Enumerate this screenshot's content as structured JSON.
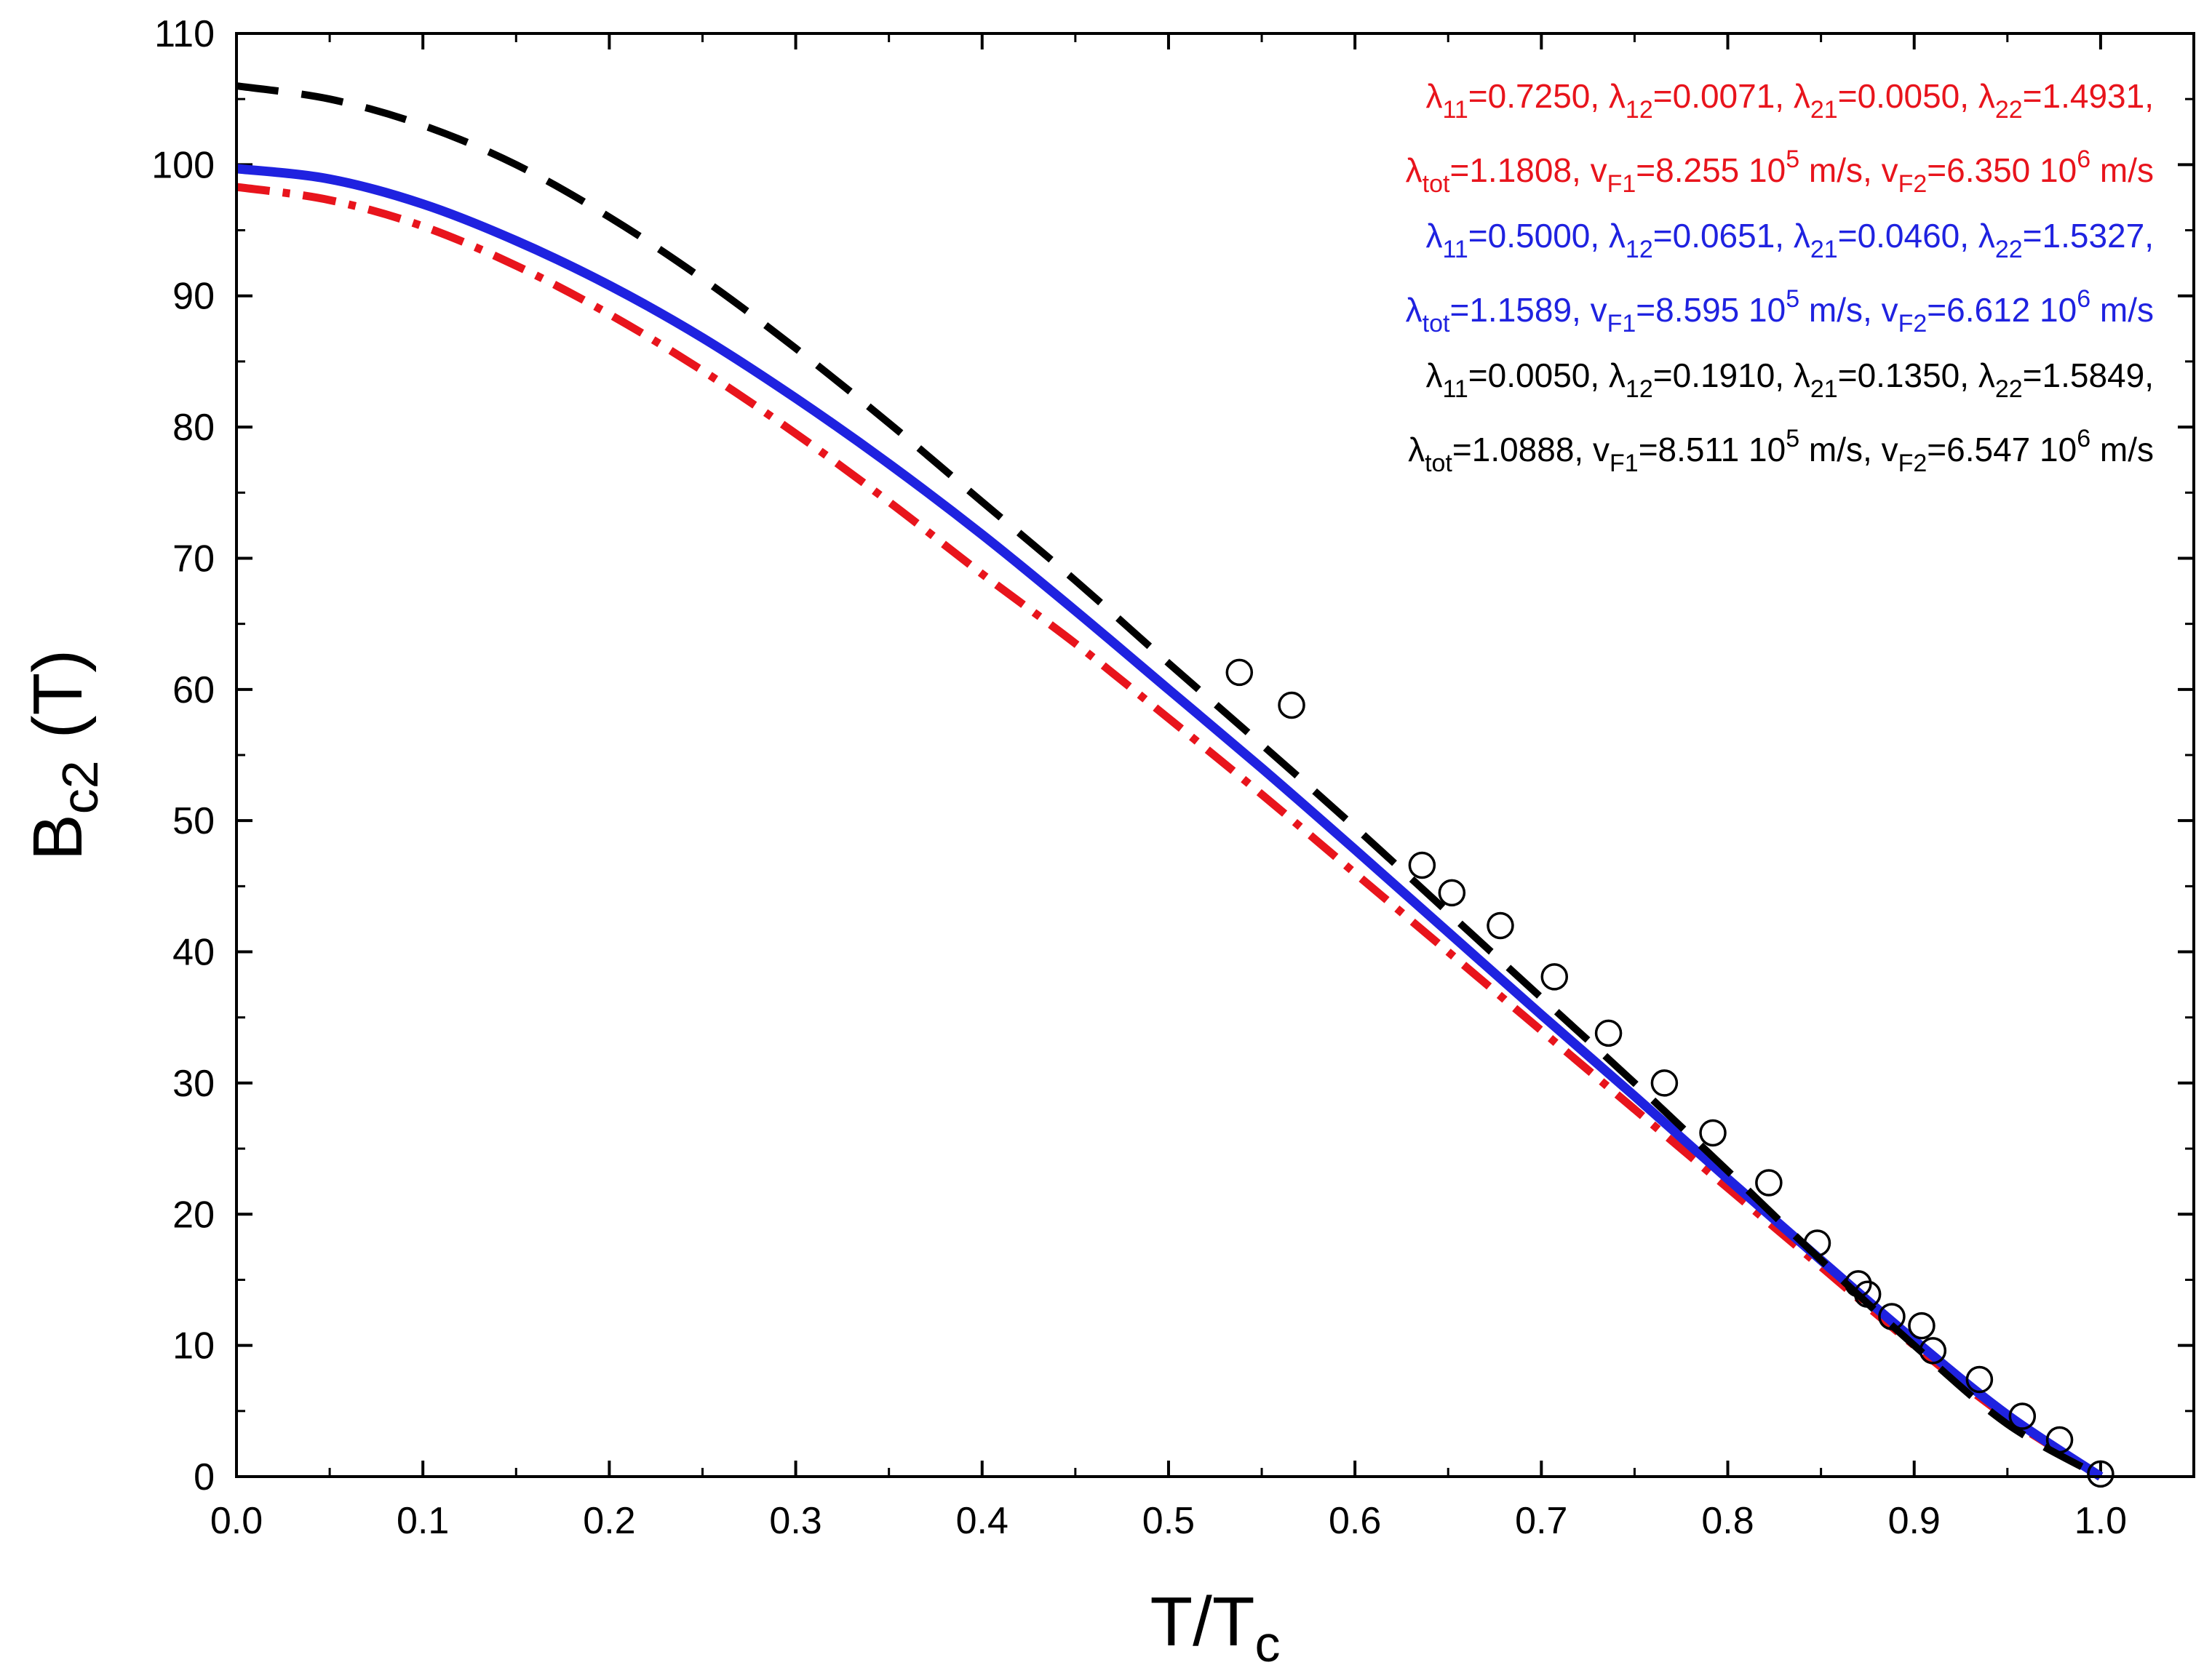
{
  "chart_data": {
    "type": "line",
    "xlabel": {
      "main": "T/T",
      "sub": "c"
    },
    "ylabel": {
      "main": "B",
      "sub": "c2",
      "unit": "(T)"
    },
    "xlim": [
      0.0,
      1.05
    ],
    "ylim": [
      0,
      110
    ],
    "x_ticks": [
      "0.0",
      "0.1",
      "0.2",
      "0.3",
      "0.4",
      "0.5",
      "0.6",
      "0.7",
      "0.8",
      "0.9",
      "1.0"
    ],
    "y_ticks": [
      "0",
      "10",
      "20",
      "30",
      "40",
      "50",
      "60",
      "70",
      "80",
      "90",
      "100",
      "110"
    ],
    "series": [
      {
        "name": "red dash-dot fit",
        "color": "#e8141c",
        "style": "dashdot",
        "points": [
          [
            0.0,
            98.3
          ],
          [
            0.05,
            97.3
          ],
          [
            0.1,
            95.3
          ],
          [
            0.15,
            92.3
          ],
          [
            0.2,
            88.6
          ],
          [
            0.25,
            84.3
          ],
          [
            0.3,
            79.5
          ],
          [
            0.35,
            74.3
          ],
          [
            0.4,
            68.8
          ],
          [
            0.45,
            63.5
          ],
          [
            0.5,
            57.8
          ],
          [
            0.55,
            52.0
          ],
          [
            0.6,
            46.0
          ],
          [
            0.65,
            40.0
          ],
          [
            0.7,
            34.0
          ],
          [
            0.75,
            28.0
          ],
          [
            0.8,
            22.0
          ],
          [
            0.85,
            16.0
          ],
          [
            0.9,
            10.0
          ],
          [
            0.95,
            4.5
          ],
          [
            1.0,
            0.0
          ]
        ]
      },
      {
        "name": "blue solid fit",
        "color": "#1f22e0",
        "style": "solid",
        "points": [
          [
            0.0,
            99.7
          ],
          [
            0.05,
            98.9
          ],
          [
            0.1,
            97.0
          ],
          [
            0.15,
            94.2
          ],
          [
            0.2,
            90.8
          ],
          [
            0.25,
            86.8
          ],
          [
            0.3,
            82.2
          ],
          [
            0.35,
            77.2
          ],
          [
            0.4,
            71.8
          ],
          [
            0.45,
            66.0
          ],
          [
            0.5,
            60.0
          ],
          [
            0.55,
            54.0
          ],
          [
            0.6,
            47.8
          ],
          [
            0.65,
            41.5
          ],
          [
            0.7,
            35.2
          ],
          [
            0.75,
            29.0
          ],
          [
            0.8,
            22.7
          ],
          [
            0.85,
            16.5
          ],
          [
            0.9,
            10.4
          ],
          [
            0.95,
            4.7
          ],
          [
            1.0,
            0.0
          ]
        ]
      },
      {
        "name": "black dashed fit",
        "color": "#000000",
        "style": "dashed",
        "points": [
          [
            0.0,
            106.0
          ],
          [
            0.05,
            105.0
          ],
          [
            0.1,
            103.0
          ],
          [
            0.15,
            100.0
          ],
          [
            0.2,
            96.0
          ],
          [
            0.25,
            91.3
          ],
          [
            0.3,
            86.0
          ],
          [
            0.35,
            80.3
          ],
          [
            0.4,
            74.3
          ],
          [
            0.45,
            68.3
          ],
          [
            0.5,
            62.0
          ],
          [
            0.55,
            55.8
          ],
          [
            0.6,
            49.5
          ],
          [
            0.65,
            43.0
          ],
          [
            0.7,
            36.5
          ],
          [
            0.75,
            30.0
          ],
          [
            0.8,
            23.3
          ],
          [
            0.85,
            16.5
          ],
          [
            0.9,
            10.0
          ],
          [
            0.95,
            4.0
          ],
          [
            1.0,
            0.0
          ]
        ]
      }
    ],
    "scatter": {
      "name": "experimental data",
      "marker": "open-circle",
      "points": [
        [
          0.538,
          61.3
        ],
        [
          0.566,
          58.8
        ],
        [
          0.636,
          46.6
        ],
        [
          0.652,
          44.5
        ],
        [
          0.678,
          42.0
        ],
        [
          0.707,
          38.1
        ],
        [
          0.736,
          33.8
        ],
        [
          0.766,
          30.0
        ],
        [
          0.792,
          26.2
        ],
        [
          0.822,
          22.4
        ],
        [
          0.848,
          17.8
        ],
        [
          0.87,
          14.7
        ],
        [
          0.875,
          13.9
        ],
        [
          0.888,
          12.2
        ],
        [
          0.904,
          11.5
        ],
        [
          0.91,
          9.6
        ],
        [
          0.935,
          7.4
        ],
        [
          0.958,
          4.6
        ],
        [
          0.978,
          2.8
        ],
        [
          1.0,
          0.2
        ]
      ]
    },
    "legend": {
      "placement": "top-right",
      "lines": [
        {
          "color": "#e8141c",
          "parts": [
            [
              "λ",
              ""
            ],
            [
              "11",
              "sub"
            ],
            [
              "=0.7250, λ",
              ""
            ],
            [
              "12",
              "sub"
            ],
            [
              "=0.0071, λ",
              ""
            ],
            [
              "21",
              "sub"
            ],
            [
              "=0.0050, λ",
              ""
            ],
            [
              "22",
              "sub"
            ],
            [
              "=1.4931,",
              ""
            ]
          ]
        },
        {
          "color": "#e8141c",
          "parts": [
            [
              "λ",
              ""
            ],
            [
              "tot",
              "sub"
            ],
            [
              "=1.1808, v",
              ""
            ],
            [
              "F1",
              "sub"
            ],
            [
              "=8.255 10",
              ""
            ],
            [
              "5",
              "sup"
            ],
            [
              " m/s, v",
              ""
            ],
            [
              "F2",
              "sub"
            ],
            [
              "=6.350 10",
              ""
            ],
            [
              "6",
              "sup"
            ],
            [
              " m/s",
              ""
            ]
          ]
        },
        {
          "color": "#1f22e0",
          "parts": [
            [
              "λ",
              ""
            ],
            [
              "11",
              "sub"
            ],
            [
              "=0.5000, λ",
              ""
            ],
            [
              "12",
              "sub"
            ],
            [
              "=0.0651, λ",
              ""
            ],
            [
              "21",
              "sub"
            ],
            [
              "=0.0460, λ",
              ""
            ],
            [
              "22",
              "sub"
            ],
            [
              "=1.5327,",
              ""
            ]
          ]
        },
        {
          "color": "#1f22e0",
          "parts": [
            [
              "λ",
              ""
            ],
            [
              "tot",
              "sub"
            ],
            [
              "=1.1589, v",
              ""
            ],
            [
              "F1",
              "sub"
            ],
            [
              "=8.595 10",
              ""
            ],
            [
              "5",
              "sup"
            ],
            [
              " m/s, v",
              ""
            ],
            [
              "F2",
              "sub"
            ],
            [
              "=6.612 10",
              ""
            ],
            [
              "6",
              "sup"
            ],
            [
              " m/s",
              ""
            ]
          ]
        },
        {
          "color": "#000000",
          "parts": [
            [
              "λ",
              ""
            ],
            [
              "11",
              "sub"
            ],
            [
              "=0.0050, λ",
              ""
            ],
            [
              "12",
              "sub"
            ],
            [
              "=0.1910, λ",
              ""
            ],
            [
              "21",
              "sub"
            ],
            [
              "=0.1350, λ",
              ""
            ],
            [
              "22",
              "sub"
            ],
            [
              "=1.5849,",
              ""
            ]
          ]
        },
        {
          "color": "#000000",
          "parts": [
            [
              "λ",
              ""
            ],
            [
              "tot",
              "sub"
            ],
            [
              "=1.0888, v",
              ""
            ],
            [
              "F1",
              "sub"
            ],
            [
              "=8.511 10",
              ""
            ],
            [
              "5",
              "sup"
            ],
            [
              " m/s, v",
              ""
            ],
            [
              "F2",
              "sub"
            ],
            [
              "=6.547 10",
              ""
            ],
            [
              "6",
              "sup"
            ],
            [
              " m/s",
              ""
            ]
          ]
        }
      ]
    }
  }
}
